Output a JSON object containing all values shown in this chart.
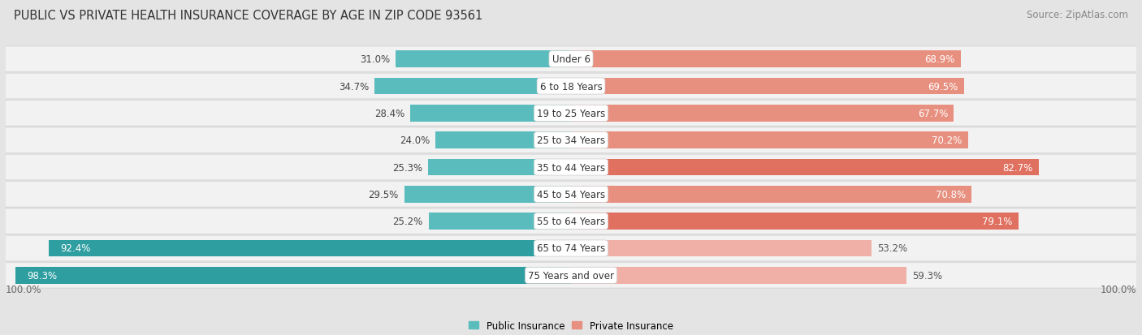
{
  "title": "PUBLIC VS PRIVATE HEALTH INSURANCE COVERAGE BY AGE IN ZIP CODE 93561",
  "source": "Source: ZipAtlas.com",
  "categories": [
    "Under 6",
    "6 to 18 Years",
    "19 to 25 Years",
    "25 to 34 Years",
    "35 to 44 Years",
    "45 to 54 Years",
    "55 to 64 Years",
    "65 to 74 Years",
    "75 Years and over"
  ],
  "public_values": [
    31.0,
    34.7,
    28.4,
    24.0,
    25.3,
    29.5,
    25.2,
    92.4,
    98.3
  ],
  "private_values": [
    68.9,
    69.5,
    67.7,
    70.2,
    82.7,
    70.8,
    79.1,
    53.2,
    59.3
  ],
  "public_color": "#5bbcbe",
  "public_color_dark": "#2e9ea0",
  "private_color_strong": "#e07060",
  "private_color_medium": "#e89080",
  "private_color_light": "#f0b0a8",
  "bg_color": "#e4e4e4",
  "row_bg": "#f2f2f2",
  "row_bg_border": "#d8d8d8",
  "bar_height": 0.62,
  "x_axis_left_label": "100.0%",
  "x_axis_right_label": "100.0%",
  "legend_public": "Public Insurance",
  "legend_private": "Private Insurance",
  "title_fontsize": 10.5,
  "source_fontsize": 8.5,
  "bar_label_fontsize": 8.5,
  "category_fontsize": 8.5,
  "axis_label_fontsize": 8.5,
  "private_thresholds": [
    75,
    60
  ],
  "public_threshold": 85
}
